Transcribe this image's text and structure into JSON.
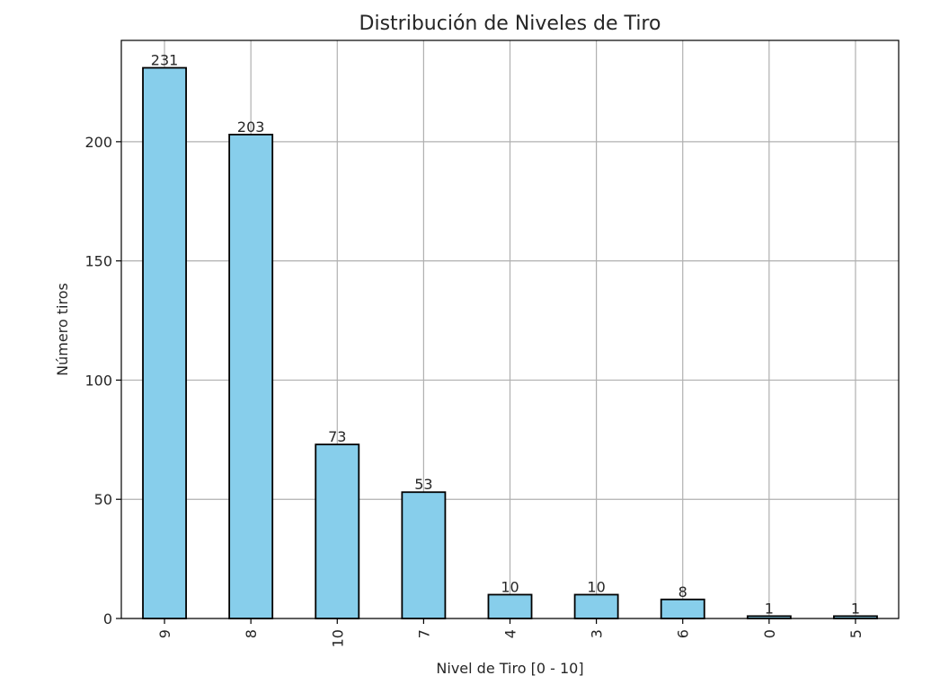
{
  "chart_data": {
    "type": "bar",
    "title": "Distribución de Niveles de Tiro",
    "xlabel": "Nivel de Tiro [0 - 10]",
    "ylabel": "Número tiros",
    "categories": [
      "9",
      "8",
      "10",
      "7",
      "4",
      "3",
      "6",
      "0",
      "5"
    ],
    "values": [
      231,
      203,
      73,
      53,
      10,
      10,
      8,
      1,
      1
    ],
    "data_labels": [
      "231",
      "203",
      "73",
      "53",
      "10",
      "10",
      "8",
      "1",
      "1"
    ],
    "ylim": [
      0,
      242.5
    ],
    "yticks": [
      0,
      50,
      100,
      150,
      200
    ],
    "ytick_labels": [
      "0",
      "50",
      "100",
      "150",
      "200"
    ],
    "grid": true,
    "x_tick_rotation": 90,
    "legend": "none",
    "bar_color": "#87ceeb",
    "bar_edge_color": "#000000",
    "grid_color": "#b0b0b0"
  }
}
